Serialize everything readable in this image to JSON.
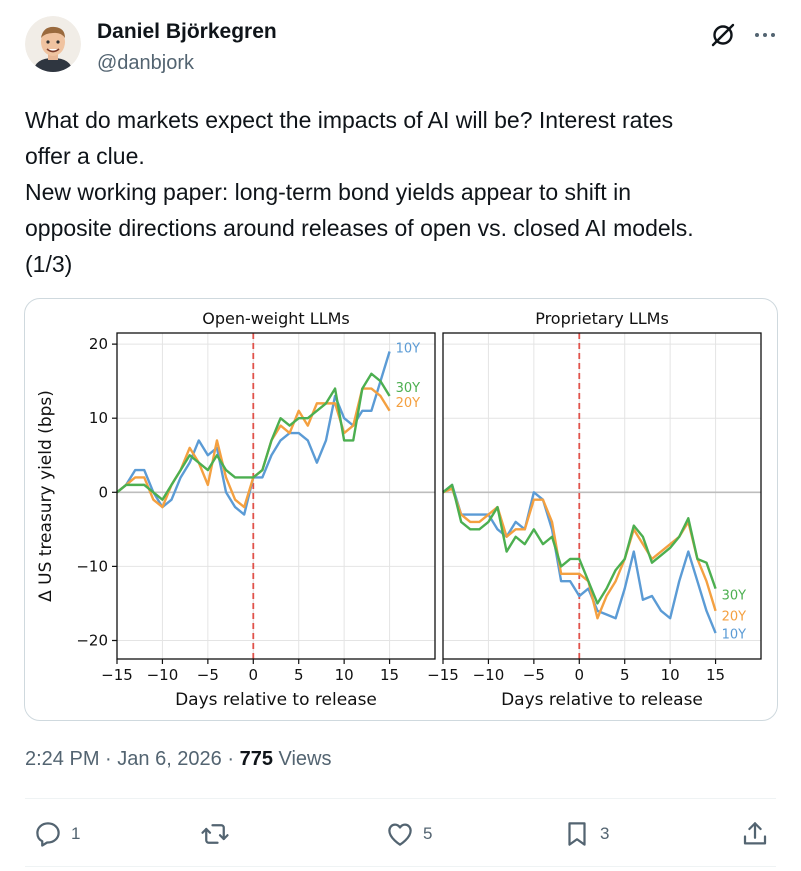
{
  "author": {
    "name": "Daniel Björkegren",
    "handle": "@danbjork"
  },
  "tweet": {
    "lines": [
      "What do markets expect the impacts of AI will be? Interest rates",
      "offer a clue.",
      "New working paper: long-term bond yields appear to shift in",
      "opposite directions around releases of open vs. closed AI models.",
      "(1/3)"
    ]
  },
  "meta": {
    "time": "2:24 PM",
    "sep1": " · ",
    "date": "Jan 6, 2026",
    "sep2": " · ",
    "views": "775",
    "views_label": " Views"
  },
  "actions": {
    "reply_count": "1",
    "repost_count": "",
    "like_count": "5",
    "bookmark_count": "3"
  },
  "icons": {
    "grok": "grok-icon",
    "more": "more-icon",
    "reply": "reply-icon",
    "repost": "repost-icon",
    "like": "like-icon",
    "bookmark": "bookmark-icon",
    "share": "share-icon"
  },
  "colors": {
    "10Y": "#5b9bd5",
    "20Y": "#f4a040",
    "30Y": "#4caf50",
    "release_line": "#e0524a"
  },
  "chart_data": [
    {
      "type": "line",
      "title": "Open-weight LLMs",
      "xlabel": "Days relative to release",
      "ylabel": "Δ US treasury yield (bps)",
      "xlim": [
        -15,
        20
      ],
      "ylim": [
        -22.5,
        21.5
      ],
      "xticks": [
        -15,
        -10,
        -5,
        0,
        5,
        10,
        15
      ],
      "yticks": [
        -20,
        -10,
        0,
        10,
        20
      ],
      "xtick_labels": [
        "−15",
        "−10",
        "−5",
        "0",
        "5",
        "10",
        "15"
      ],
      "ytick_labels": [
        "−20",
        "−10",
        "0",
        "10",
        "20"
      ],
      "x": [
        -15,
        -14,
        -13,
        -12,
        -11,
        -10,
        -9,
        -8,
        -7,
        -6,
        -5,
        -4,
        -3,
        -2,
        -1,
        0,
        1,
        2,
        3,
        4,
        5,
        6,
        7,
        8,
        9,
        10,
        11,
        12,
        13,
        14,
        15
      ],
      "grid": true,
      "series": [
        {
          "name": "10Y",
          "values": [
            0,
            1,
            3,
            3,
            0,
            -2,
            -1,
            2,
            4,
            7,
            5,
            6,
            0,
            -2,
            -3,
            2,
            2,
            5,
            7,
            8,
            8,
            7,
            4,
            7,
            13,
            10,
            9,
            11,
            11,
            15,
            19
          ]
        },
        {
          "name": "20Y",
          "values": [
            0,
            1,
            2,
            2,
            -1,
            -2,
            1,
            3,
            6,
            4,
            1,
            7,
            2,
            -1,
            -2,
            2,
            3,
            7,
            9,
            8,
            11,
            9,
            12,
            12,
            12,
            8,
            9,
            14,
            14,
            13,
            11
          ]
        },
        {
          "name": "30Y",
          "values": [
            0,
            1,
            1,
            1,
            0,
            -1,
            1,
            3,
            5,
            4,
            3,
            5,
            3,
            2,
            2,
            2,
            3,
            7,
            10,
            9,
            10,
            10,
            11,
            12,
            14,
            7,
            7,
            14,
            16,
            15,
            13
          ]
        }
      ],
      "end_labels": [
        "10Y",
        "30Y",
        "20Y"
      ]
    },
    {
      "type": "line",
      "title": "Proprietary LLMs",
      "xlabel": "Days relative to release",
      "ylabel": "",
      "xlim": [
        -15,
        20
      ],
      "ylim": [
        -22.5,
        21.5
      ],
      "xticks": [
        -15,
        -10,
        -5,
        0,
        5,
        10,
        15
      ],
      "xtick_labels": [
        "−15",
        "−10",
        "−5",
        "0",
        "5",
        "10",
        "15"
      ],
      "x": [
        -15,
        -14,
        -13,
        -12,
        -11,
        -10,
        -9,
        -8,
        -7,
        -6,
        -5,
        -4,
        -3,
        -2,
        -1,
        0,
        1,
        2,
        3,
        4,
        5,
        6,
        7,
        8,
        9,
        10,
        11,
        12,
        13,
        14,
        15
      ],
      "grid": true,
      "series": [
        {
          "name": "10Y",
          "values": [
            0,
            1,
            -3,
            -3,
            -3,
            -3,
            -5,
            -6,
            -4,
            -5,
            0,
            -1,
            -5,
            -12,
            -12,
            -14,
            -13,
            -16,
            -16.5,
            -17,
            -13,
            -8,
            -14.5,
            -14,
            -16,
            -17,
            -12,
            -8,
            -12,
            -16,
            -19
          ]
        },
        {
          "name": "20Y",
          "values": [
            0,
            0.5,
            -3,
            -4,
            -4,
            -3,
            -2,
            -6,
            -5,
            -5,
            -1,
            -1,
            -4,
            -11,
            -11,
            -11,
            -12,
            -17,
            -14,
            -12,
            -9,
            -5,
            -7,
            -9,
            -8,
            -7,
            -6,
            -4,
            -9,
            -12,
            -16
          ]
        },
        {
          "name": "30Y",
          "values": [
            0,
            1,
            -4,
            -5,
            -5,
            -4,
            -2,
            -8,
            -6,
            -7,
            -5,
            -7,
            -6,
            -10,
            -9,
            -9,
            -12,
            -15,
            -13,
            -10.5,
            -9,
            -4.5,
            -6,
            -9.5,
            -8.5,
            -7.5,
            -6,
            -3.5,
            -9,
            -9.5,
            -13
          ]
        }
      ],
      "end_labels": [
        "30Y",
        "20Y",
        "10Y"
      ]
    }
  ]
}
